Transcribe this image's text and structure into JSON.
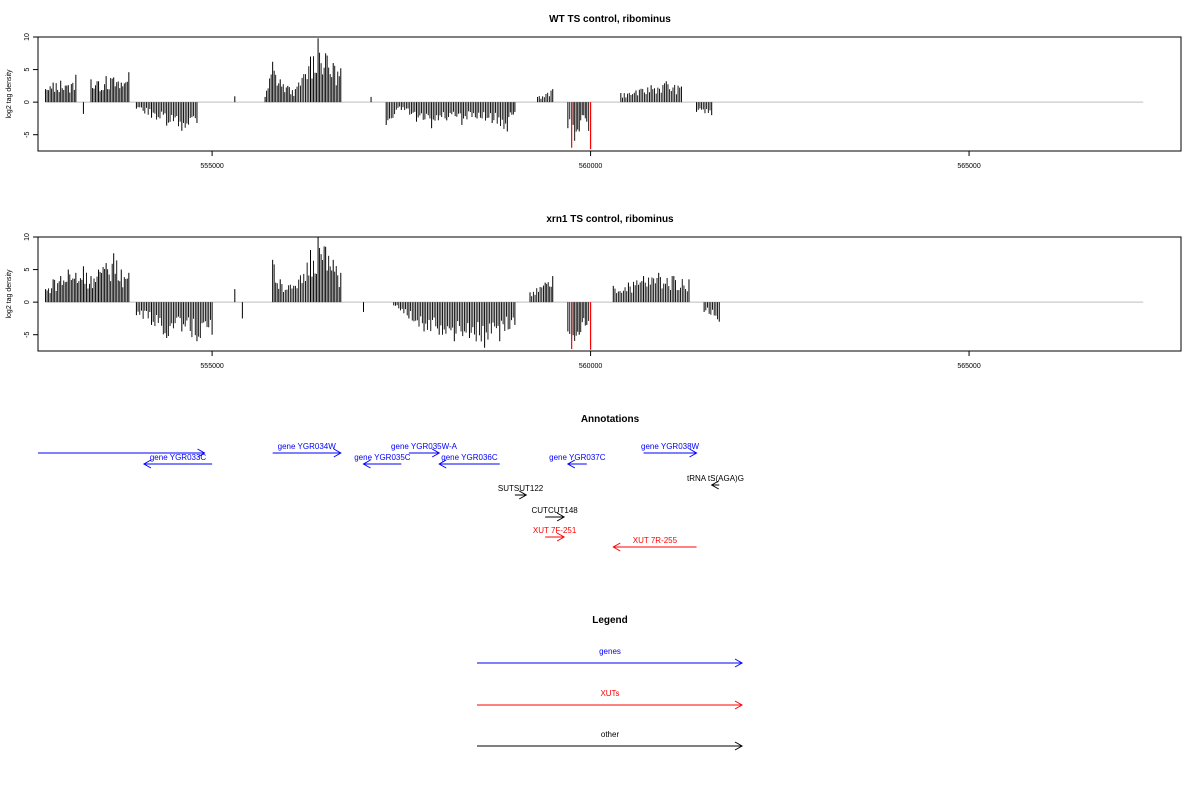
{
  "chart_data": [
    {
      "type": "bar",
      "title": "WT TS control, ribominus",
      "ylabel": "log2 tag density",
      "xlabel": "",
      "xlim": [
        552700,
        567800
      ],
      "ylim": [
        -7.5,
        10
      ],
      "x_ticks": [
        555000,
        560000,
        565000
      ],
      "x_tick_labels": [
        "555000",
        "560000",
        "565000"
      ],
      "y_ticks": [
        -5,
        0,
        5,
        10
      ],
      "y_tick_labels": [
        "-5",
        "0",
        "5",
        "10"
      ],
      "baseline_range": [
        552800,
        567300
      ],
      "bars": [
        {
          "x": 552800,
          "y": 2.0
        },
        {
          "x": 552900,
          "y": 3.0
        },
        {
          "x": 553000,
          "y": 3.3
        },
        {
          "x": 553100,
          "y": 2.6
        },
        {
          "x": 553200,
          "y": 4.2
        },
        {
          "x": 553300,
          "y": -1.8
        },
        {
          "x": 553400,
          "y": 3.5
        },
        {
          "x": 553500,
          "y": 3.2
        },
        {
          "x": 553600,
          "y": 4.0
        },
        {
          "x": 553700,
          "y": 3.8
        },
        {
          "x": 553800,
          "y": 3.0
        },
        {
          "x": 553900,
          "y": 4.6
        },
        {
          "x": 554000,
          "y": -1.0
        },
        {
          "x": 554200,
          "y": -2.4
        },
        {
          "x": 554400,
          "y": -3.6
        },
        {
          "x": 554600,
          "y": -4.4
        },
        {
          "x": 554800,
          "y": -3.2
        },
        {
          "x": 555300,
          "y": 0.9
        },
        {
          "x": 555700,
          "y": 0.8
        },
        {
          "x": 555800,
          "y": 6.2
        },
        {
          "x": 555900,
          "y": 3.5
        },
        {
          "x": 556000,
          "y": 2.5
        },
        {
          "x": 556100,
          "y": 2.0
        },
        {
          "x": 556300,
          "y": 7.0
        },
        {
          "x": 556400,
          "y": 9.8
        },
        {
          "x": 556500,
          "y": 7.5
        },
        {
          "x": 556600,
          "y": 6.0
        },
        {
          "x": 556700,
          "y": 5.2
        },
        {
          "x": 557100,
          "y": 0.8
        },
        {
          "x": 557300,
          "y": -3.5
        },
        {
          "x": 557500,
          "y": -1.2
        },
        {
          "x": 557700,
          "y": -3.0
        },
        {
          "x": 557900,
          "y": -4.0
        },
        {
          "x": 558100,
          "y": -2.8
        },
        {
          "x": 558300,
          "y": -3.5
        },
        {
          "x": 558500,
          "y": -2.5
        },
        {
          "x": 558700,
          "y": -3.2
        },
        {
          "x": 558900,
          "y": -4.5
        },
        {
          "x": 559000,
          "y": -1.5
        },
        {
          "x": 559300,
          "y": 0.8
        },
        {
          "x": 559500,
          "y": 2.0
        },
        {
          "x": 559700,
          "y": -4.0
        },
        {
          "x": 559750,
          "y": -7.0
        },
        {
          "x": 559850,
          "y": -4.5
        },
        {
          "x": 559950,
          "y": -3.0
        },
        {
          "x": 560000,
          "y": -7.2
        },
        {
          "x": 560400,
          "y": 1.4
        },
        {
          "x": 560600,
          "y": 1.8
        },
        {
          "x": 560800,
          "y": 2.6
        },
        {
          "x": 561000,
          "y": 3.2
        },
        {
          "x": 561200,
          "y": 2.4
        },
        {
          "x": 561400,
          "y": -1.5
        },
        {
          "x": 561600,
          "y": -2.0
        }
      ],
      "highlight_bars": [
        559750,
        560000
      ],
      "colors": {
        "bars": "#000000",
        "highlight": "#ff0000",
        "baseline": "#bebebe"
      }
    },
    {
      "type": "bar",
      "title": "xrn1 TS control, ribominus",
      "ylabel": "log2 tag density",
      "xlabel": "",
      "xlim": [
        552700,
        567800
      ],
      "ylim": [
        -7.5,
        10
      ],
      "x_ticks": [
        555000,
        560000,
        565000
      ],
      "x_tick_labels": [
        "555000",
        "560000",
        "565000"
      ],
      "y_ticks": [
        -5,
        0,
        5,
        10
      ],
      "y_tick_labels": [
        "-5",
        "0",
        "5",
        "10"
      ],
      "baseline_range": [
        552800,
        567300
      ],
      "bars": [
        {
          "x": 552800,
          "y": 2.0
        },
        {
          "x": 552900,
          "y": 3.5
        },
        {
          "x": 553000,
          "y": 4.0
        },
        {
          "x": 553100,
          "y": 5.0
        },
        {
          "x": 553200,
          "y": 4.5
        },
        {
          "x": 553300,
          "y": 5.5
        },
        {
          "x": 553400,
          "y": 4.0
        },
        {
          "x": 553500,
          "y": 5.0
        },
        {
          "x": 553600,
          "y": 6.0
        },
        {
          "x": 553700,
          "y": 7.5
        },
        {
          "x": 553800,
          "y": 5.0
        },
        {
          "x": 553900,
          "y": 4.5
        },
        {
          "x": 554000,
          "y": -2.0
        },
        {
          "x": 554200,
          "y": -3.5
        },
        {
          "x": 554400,
          "y": -5.5
        },
        {
          "x": 554600,
          "y": -4.5
        },
        {
          "x": 554800,
          "y": -6.0
        },
        {
          "x": 555000,
          "y": -5.0
        },
        {
          "x": 555300,
          "y": 2.0
        },
        {
          "x": 555400,
          "y": -2.5
        },
        {
          "x": 555800,
          "y": 6.5
        },
        {
          "x": 555900,
          "y": 3.5
        },
        {
          "x": 556100,
          "y": 2.5
        },
        {
          "x": 556300,
          "y": 8.0
        },
        {
          "x": 556400,
          "y": 10.0
        },
        {
          "x": 556500,
          "y": 8.5
        },
        {
          "x": 556600,
          "y": 6.5
        },
        {
          "x": 556700,
          "y": 4.5
        },
        {
          "x": 557000,
          "y": -1.5
        },
        {
          "x": 557400,
          "y": -0.5
        },
        {
          "x": 557600,
          "y": -2.5
        },
        {
          "x": 557800,
          "y": -4.5
        },
        {
          "x": 558000,
          "y": -5.0
        },
        {
          "x": 558200,
          "y": -6.0
        },
        {
          "x": 558400,
          "y": -5.5
        },
        {
          "x": 558600,
          "y": -7.0
        },
        {
          "x": 558800,
          "y": -6.0
        },
        {
          "x": 559000,
          "y": -3.5
        },
        {
          "x": 559200,
          "y": 1.5
        },
        {
          "x": 559400,
          "y": 3.0
        },
        {
          "x": 559500,
          "y": 4.0
        },
        {
          "x": 559700,
          "y": -4.5
        },
        {
          "x": 559750,
          "y": -7.2
        },
        {
          "x": 559850,
          "y": -5.0
        },
        {
          "x": 559950,
          "y": -3.5
        },
        {
          "x": 560000,
          "y": -7.3
        },
        {
          "x": 560300,
          "y": 2.5
        },
        {
          "x": 560500,
          "y": 3.0
        },
        {
          "x": 560700,
          "y": 4.0
        },
        {
          "x": 560900,
          "y": 4.5
        },
        {
          "x": 561100,
          "y": 4.0
        },
        {
          "x": 561300,
          "y": 3.5
        },
        {
          "x": 561500,
          "y": -1.5
        },
        {
          "x": 561700,
          "y": -3.0
        }
      ],
      "highlight_bars": [
        559750,
        560000
      ],
      "colors": {
        "bars": "#000000",
        "highlight": "#ff0000",
        "baseline": "#bebebe"
      }
    }
  ],
  "annotations": {
    "title": "Annotations",
    "features": [
      {
        "label": "",
        "start": 552700,
        "end": 554900,
        "strand": "+",
        "type": "gene"
      },
      {
        "label": "gene YGR033C",
        "start": 554100,
        "end": 555000,
        "strand": "-",
        "type": "gene"
      },
      {
        "label": "gene YGR034W",
        "start": 555800,
        "end": 556700,
        "strand": "+",
        "type": "gene"
      },
      {
        "label": "gene YGR035C",
        "start": 557000,
        "end": 557500,
        "strand": "-",
        "type": "gene"
      },
      {
        "label": "gene YGR035W-A",
        "start": 557600,
        "end": 558000,
        "strand": "+",
        "type": "gene"
      },
      {
        "label": "gene YGR036C",
        "start": 558000,
        "end": 558800,
        "strand": "-",
        "type": "gene"
      },
      {
        "label": "gene YGR037C",
        "start": 559700,
        "end": 559950,
        "strand": "-",
        "type": "gene"
      },
      {
        "label": "gene YGR038W",
        "start": 560700,
        "end": 561400,
        "strand": "+",
        "type": "gene"
      },
      {
        "label": "tRNA tS(AGA)G",
        "start": 561600,
        "end": 561700,
        "strand": "-",
        "type": "other"
      },
      {
        "label": "SUTSUT122",
        "start": 559000,
        "end": 559150,
        "strand": "+",
        "type": "other"
      },
      {
        "label": "CUTCUT148",
        "start": 559400,
        "end": 559650,
        "strand": "+",
        "type": "other"
      },
      {
        "label": "XUT 7F-251",
        "start": 559400,
        "end": 559650,
        "strand": "+",
        "type": "xut"
      },
      {
        "label": "XUT 7R-255",
        "start": 560300,
        "end": 561400,
        "strand": "-",
        "type": "xut"
      }
    ]
  },
  "legend": {
    "title": "Legend",
    "items": [
      {
        "label": "genes",
        "color": "#0000ff"
      },
      {
        "label": "XUTs",
        "color": "#ff0000"
      },
      {
        "label": "other",
        "color": "#000000"
      }
    ]
  },
  "colors": {
    "gene": "#0000ff",
    "xut": "#ff0000",
    "other": "#000000",
    "axis": "#000000",
    "baseline": "#bebebe"
  }
}
